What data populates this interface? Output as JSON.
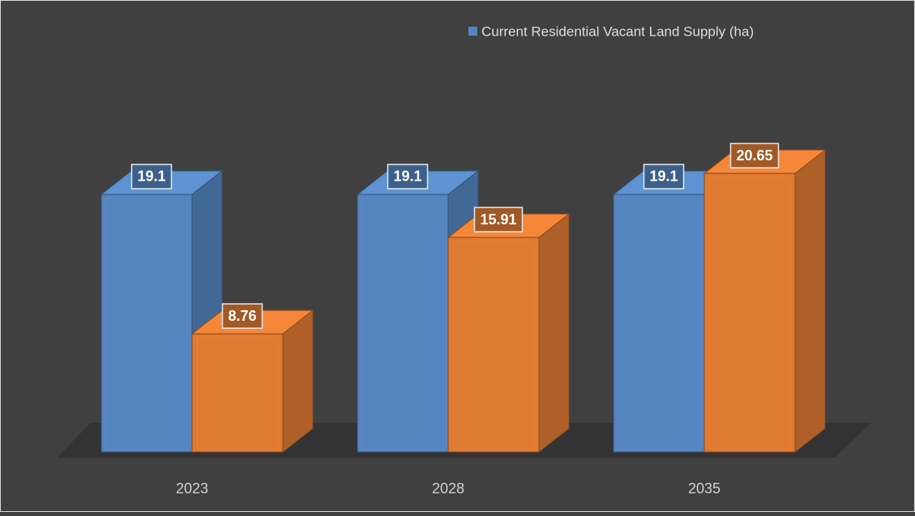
{
  "chart_data": {
    "type": "bar3d",
    "categories": [
      "2023",
      "2028",
      "2035"
    ],
    "series": [
      {
        "name": "Current Residential Vacant Land Supply (ha)",
        "color": "#5585c0",
        "values": [
          19.1,
          19.1,
          19.1
        ]
      },
      {
        "color": "#e07b33",
        "values": [
          8.76,
          15.91,
          20.65
        ]
      }
    ],
    "legend": "top-right"
  }
}
